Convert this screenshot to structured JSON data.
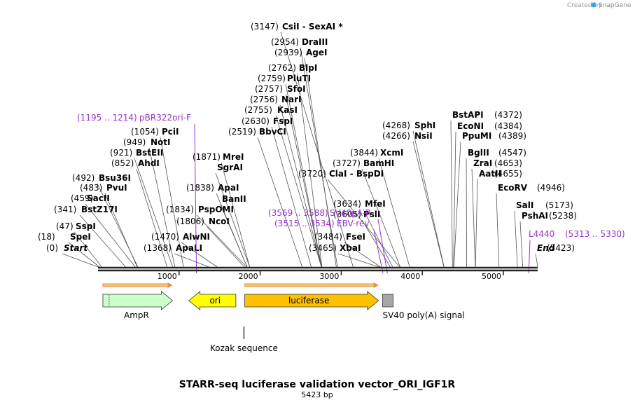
{
  "credit": {
    "prefix": "Created by",
    "brand": "SnapGene"
  },
  "title": "STARR-seq luciferase validation vector_ORI_IGF1R",
  "length_label": "5423 bp",
  "sequence_length": 5423,
  "colors": {
    "backbone": "#222222",
    "site_line": "#555555",
    "primer": "#9933cc",
    "ampr": "#ccffcc",
    "ori": "#ffff00",
    "luciferase": "#ffc000",
    "polya": "#a6a6a6",
    "orf": "#e69138"
  },
  "ticks": [
    {
      "pos": 1000,
      "label": "1000"
    },
    {
      "pos": 2000,
      "label": "2000"
    },
    {
      "pos": 3000,
      "label": "3000"
    },
    {
      "pos": 4000,
      "label": "4000"
    },
    {
      "pos": 5000,
      "label": "5000"
    }
  ],
  "sites": [
    {
      "name": "Start",
      "coord": "(0)",
      "pos": 0,
      "italic": true
    },
    {
      "name": "SpeI",
      "coord": "(18)",
      "pos": 18
    },
    {
      "name": "SspI",
      "coord": "(47)",
      "pos": 47
    },
    {
      "name": "BstZ17I",
      "coord": "(341)",
      "pos": 341
    },
    {
      "name": "SacII",
      "coord": "(459)",
      "pos": 459
    },
    {
      "name": "PvuI",
      "coord": "(483)",
      "pos": 483
    },
    {
      "name": "Bsu36I",
      "coord": "(492)",
      "pos": 492
    },
    {
      "name": "AhdI",
      "coord": "(852)",
      "pos": 852
    },
    {
      "name": "BstEII",
      "coord": "(921)",
      "pos": 921
    },
    {
      "name": "NotI",
      "coord": "(949)",
      "pos": 949
    },
    {
      "name": "PciI",
      "coord": "(1054)",
      "pos": 1054
    },
    {
      "name": "ApaLI",
      "coord": "(1368)",
      "pos": 1368
    },
    {
      "name": "AlwNI",
      "coord": "(1470)",
      "pos": 1470
    },
    {
      "name": "NcoI",
      "coord": "(1806)",
      "pos": 1806
    },
    {
      "name": "PspOMI",
      "coord": "(1834)",
      "pos": 1834
    },
    {
      "name": "ApaI",
      "coord": "(1838)",
      "pos": 1838
    },
    {
      "name": "BanII",
      "coord": "",
      "pos": 1838
    },
    {
      "name": "SgrAI",
      "coord": "",
      "pos": 1871
    },
    {
      "name": "MreI",
      "coord": "(1871)",
      "pos": 1871
    },
    {
      "name": "BbvCI",
      "coord": "(2519)",
      "pos": 2519
    },
    {
      "name": "FspI",
      "coord": "(2630)",
      "pos": 2630
    },
    {
      "name": "KasI",
      "coord": "(2755)",
      "pos": 2755
    },
    {
      "name": "NarI",
      "coord": "(2756)",
      "pos": 2756
    },
    {
      "name": "SfoI",
      "coord": "(2757)",
      "pos": 2757
    },
    {
      "name": "PluTI",
      "coord": "(2759)",
      "pos": 2759
    },
    {
      "name": "BlpI",
      "coord": "(2762)",
      "pos": 2762
    },
    {
      "name": "AgeI",
      "coord": "(2939)",
      "pos": 2939
    },
    {
      "name": "DraIII",
      "coord": "(2954)",
      "pos": 2954
    },
    {
      "name": "CsiI  -  SexAI *",
      "coord": "(3147)",
      "pos": 3147
    },
    {
      "name": "XbaI",
      "coord": "(3465)",
      "pos": 3465
    },
    {
      "name": "FseI",
      "coord": "(3484)",
      "pos": 3484
    },
    {
      "name": "PslI",
      "coord": "(3605)",
      "pos": 3605
    },
    {
      "name": "MfeI",
      "coord": "(3634)",
      "pos": 3634
    },
    {
      "name": "ClaI  -  BspDI",
      "coord": "(3720)",
      "pos": 3720
    },
    {
      "name": "BamHI",
      "coord": "(3727)",
      "pos": 3727
    },
    {
      "name": "XcmI",
      "coord": "(3844)",
      "pos": 3844
    },
    {
      "name": "NsiI",
      "coord": "(4266)",
      "pos": 4266
    },
    {
      "name": "SphI",
      "coord": "(4268)",
      "pos": 4268
    },
    {
      "name": "BstAPI",
      "coord": "(4372)",
      "pos": 4372
    },
    {
      "name": "EcoNI",
      "coord": "(4384)",
      "pos": 4384
    },
    {
      "name": "PpuMI",
      "coord": "(4389)",
      "pos": 4389
    },
    {
      "name": "BglII",
      "coord": "(4547)",
      "pos": 4547
    },
    {
      "name": "ZraI",
      "coord": "(4653)",
      "pos": 4653
    },
    {
      "name": "AatII",
      "coord": "(4655)",
      "pos": 4655
    },
    {
      "name": "EcoRV",
      "coord": "(4946)",
      "pos": 4946
    },
    {
      "name": "SalI",
      "coord": "(5173)",
      "pos": 5173
    },
    {
      "name": "PshAI",
      "coord": "(5238)",
      "pos": 5238
    },
    {
      "name": "End",
      "coord": "(5423)",
      "pos": 5423,
      "italic": true
    }
  ],
  "primers": [
    {
      "name": "pBR322ori-F",
      "range": "(1195 .. 1214)",
      "pos": 1214
    },
    {
      "name": "SV40pA-R",
      "range": "(3569 .. 3588)",
      "pos": 3569
    },
    {
      "name": "EBV-rev",
      "range": "(3515 .. 3534)",
      "pos": 3515
    },
    {
      "name": "L4440",
      "range": "(5313 .. 5330)",
      "pos": 5313
    }
  ],
  "features": [
    {
      "name": "AmpR",
      "start": 60,
      "end": 920,
      "dir": "right",
      "color": "#ccffcc",
      "label_inside": false
    },
    {
      "name": "ori",
      "start": 1120,
      "end": 1700,
      "dir": "left",
      "color": "#ffff00",
      "label_inside": true
    },
    {
      "name": "luciferase",
      "start": 1810,
      "end": 3460,
      "dir": "right",
      "color": "#ffc000",
      "label_inside": true
    },
    {
      "name": "SV40 poly(A) signal",
      "start": 3510,
      "end": 3640,
      "dir": "none",
      "color": "#a6a6a6",
      "label_inside": false
    },
    {
      "name": "Kozak sequence",
      "start": 1800,
      "end": 1812,
      "dir": "none",
      "color": "#000000",
      "label_inside": false
    }
  ],
  "orfs": [
    {
      "start": 60,
      "end": 920
    },
    {
      "start": 1810,
      "end": 3460
    }
  ]
}
